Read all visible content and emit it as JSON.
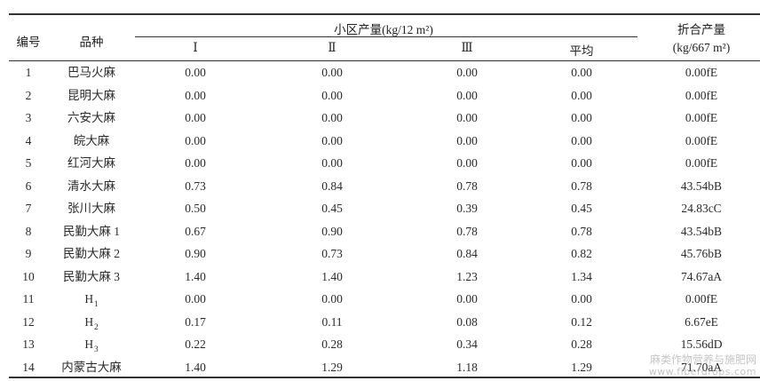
{
  "header": {
    "col_no": "编号",
    "col_variety": "品种",
    "plot_yield": "小区产量(kg/12 m²)",
    "rep1": "Ⅰ",
    "rep2": "Ⅱ",
    "rep3": "Ⅲ",
    "avg": "平均",
    "converted_line1": "折合产量",
    "converted_line2": "(kg/667 m²)"
  },
  "rows": [
    {
      "no": "1",
      "variety": "巴马火麻",
      "sub": "",
      "r1": "0.00",
      "r2": "0.00",
      "r3": "0.00",
      "avg": "0.00",
      "yield": "0.00fE"
    },
    {
      "no": "2",
      "variety": "昆明大麻",
      "sub": "",
      "r1": "0.00",
      "r2": "0.00",
      "r3": "0.00",
      "avg": "0.00",
      "yield": "0.00fE"
    },
    {
      "no": "3",
      "variety": "六安大麻",
      "sub": "",
      "r1": "0.00",
      "r2": "0.00",
      "r3": "0.00",
      "avg": "0.00",
      "yield": "0.00fE"
    },
    {
      "no": "4",
      "variety": "皖大麻",
      "sub": "",
      "r1": "0.00",
      "r2": "0.00",
      "r3": "0.00",
      "avg": "0.00",
      "yield": "0.00fE"
    },
    {
      "no": "5",
      "variety": "红河大麻",
      "sub": "",
      "r1": "0.00",
      "r2": "0.00",
      "r3": "0.00",
      "avg": "0.00",
      "yield": "0.00fE"
    },
    {
      "no": "6",
      "variety": "清水大麻",
      "sub": "",
      "r1": "0.73",
      "r2": "0.84",
      "r3": "0.78",
      "avg": "0.78",
      "yield": "43.54bB"
    },
    {
      "no": "7",
      "variety": "张川大麻",
      "sub": "",
      "r1": "0.50",
      "r2": "0.45",
      "r3": "0.39",
      "avg": "0.45",
      "yield": "24.83cC"
    },
    {
      "no": "8",
      "variety": "民勤大麻 1",
      "sub": "",
      "r1": "0.67",
      "r2": "0.90",
      "r3": "0.78",
      "avg": "0.78",
      "yield": "43.54bB"
    },
    {
      "no": "9",
      "variety": "民勤大麻 2",
      "sub": "",
      "r1": "0.90",
      "r2": "0.73",
      "r3": "0.84",
      "avg": "0.82",
      "yield": "45.76bB"
    },
    {
      "no": "10",
      "variety": "民勤大麻 3",
      "sub": "",
      "r1": "1.40",
      "r2": "1.40",
      "r3": "1.23",
      "avg": "1.34",
      "yield": "74.67aA"
    },
    {
      "no": "11",
      "variety": "H",
      "sub": "1",
      "r1": "0.00",
      "r2": "0.00",
      "r3": "0.00",
      "avg": "0.00",
      "yield": "0.00fE"
    },
    {
      "no": "12",
      "variety": "H",
      "sub": "2",
      "r1": "0.17",
      "r2": "0.11",
      "r3": "0.08",
      "avg": "0.12",
      "yield": "6.67eE"
    },
    {
      "no": "13",
      "variety": "H",
      "sub": "3",
      "r1": "0.22",
      "r2": "0.28",
      "r3": "0.34",
      "avg": "0.28",
      "yield": "15.56dD"
    },
    {
      "no": "14",
      "variety": "内蒙古大麻",
      "sub": "",
      "r1": "1.40",
      "r2": "1.29",
      "r3": "1.18",
      "avg": "1.29",
      "yield": "71.70aA"
    }
  ],
  "watermark": {
    "line1": "麻类作物营养与施肥网",
    "line2": "www.fiberdrops.com"
  }
}
